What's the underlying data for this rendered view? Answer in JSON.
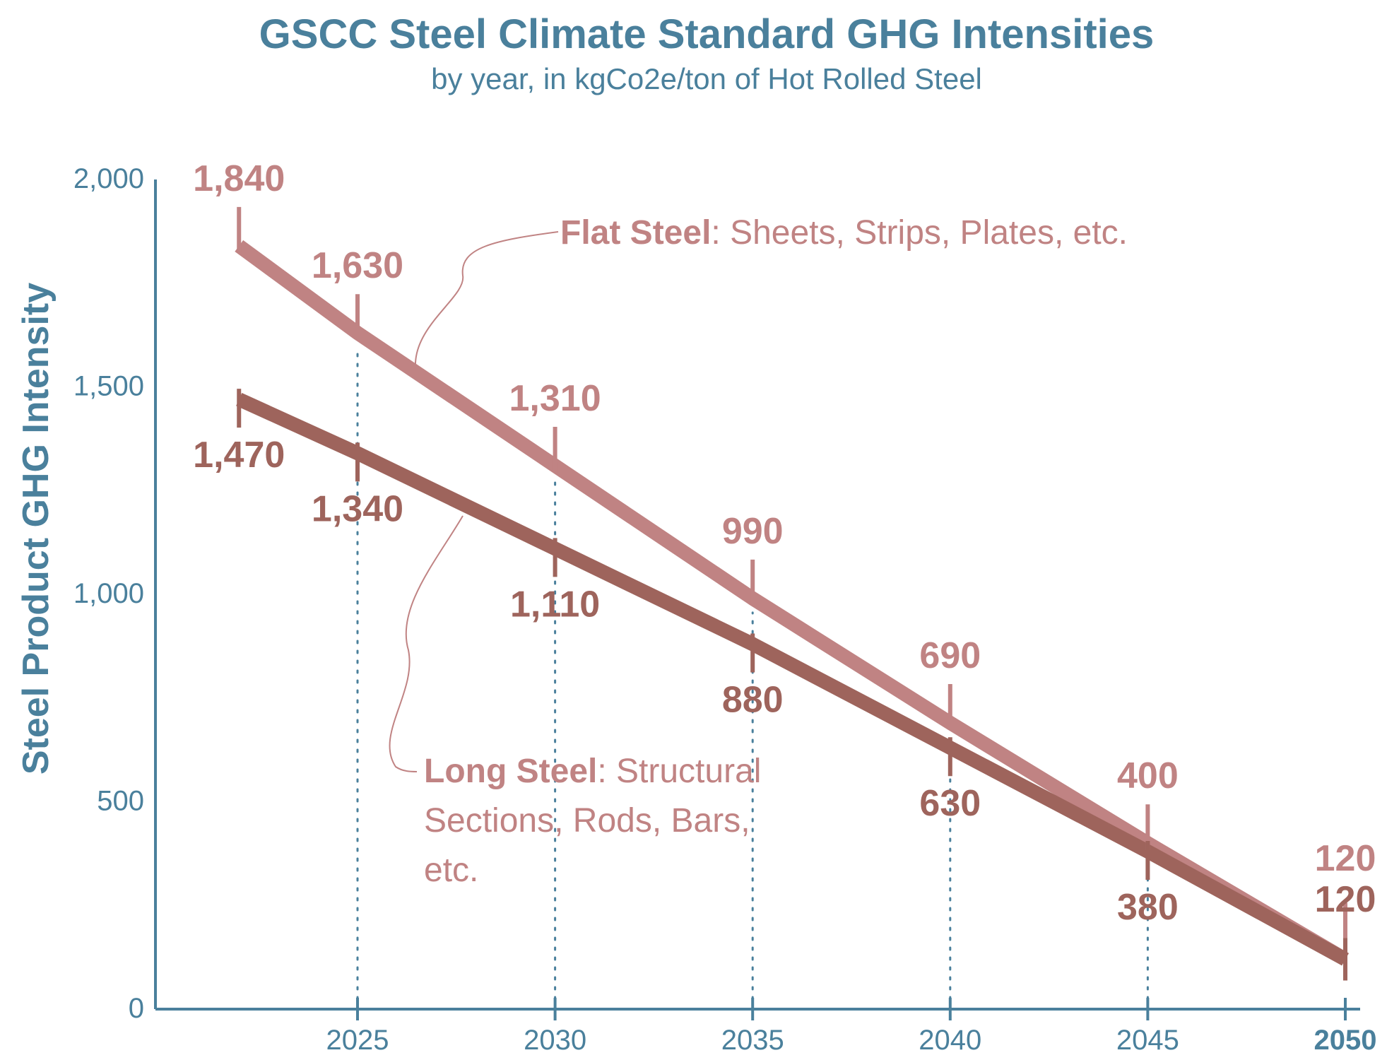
{
  "chart_data": {
    "type": "line",
    "title": "GSCC Steel Climate Standard GHG Intensities",
    "subtitle": "by year, in kgCo2e/ton of Hot Rolled Steel",
    "xlabel": "",
    "ylabel": "Steel Product GHG Intensity",
    "x": [
      2022,
      2025,
      2030,
      2035,
      2040,
      2045,
      2050
    ],
    "xticks": [
      "2025",
      "2030",
      "2035",
      "2040",
      "2045",
      "2050"
    ],
    "xtick_values": [
      2025,
      2030,
      2035,
      2040,
      2045,
      2050
    ],
    "yticks": [
      "0",
      "500",
      "1,000",
      "1,500",
      "2,000"
    ],
    "ytick_values": [
      0,
      500,
      1000,
      1500,
      2000
    ],
    "xlim": [
      2020.3,
      2050.5
    ],
    "ylim": [
      0,
      2000
    ],
    "grid": false,
    "series": [
      {
        "name": "Flat Steel",
        "description": ": Sheets, Strips, Plates, etc.",
        "values": [
          1840,
          1630,
          1310,
          990,
          690,
          400,
          120
        ],
        "labels": [
          "1,840",
          "1,630",
          "1,310",
          "990",
          "690",
          "400",
          "120"
        ],
        "color": "#c08383"
      },
      {
        "name": "Long Steel",
        "description_lines": [
          ": Structural",
          "Sections, Rods, Bars,",
          "etc."
        ],
        "values": [
          1470,
          1340,
          1110,
          880,
          630,
          380,
          120
        ],
        "labels": [
          "1,470",
          "1,340",
          "1,110",
          "880",
          "630",
          "380",
          "120"
        ],
        "color": "#9e645c"
      }
    ],
    "axis_color": "#4a809c"
  }
}
